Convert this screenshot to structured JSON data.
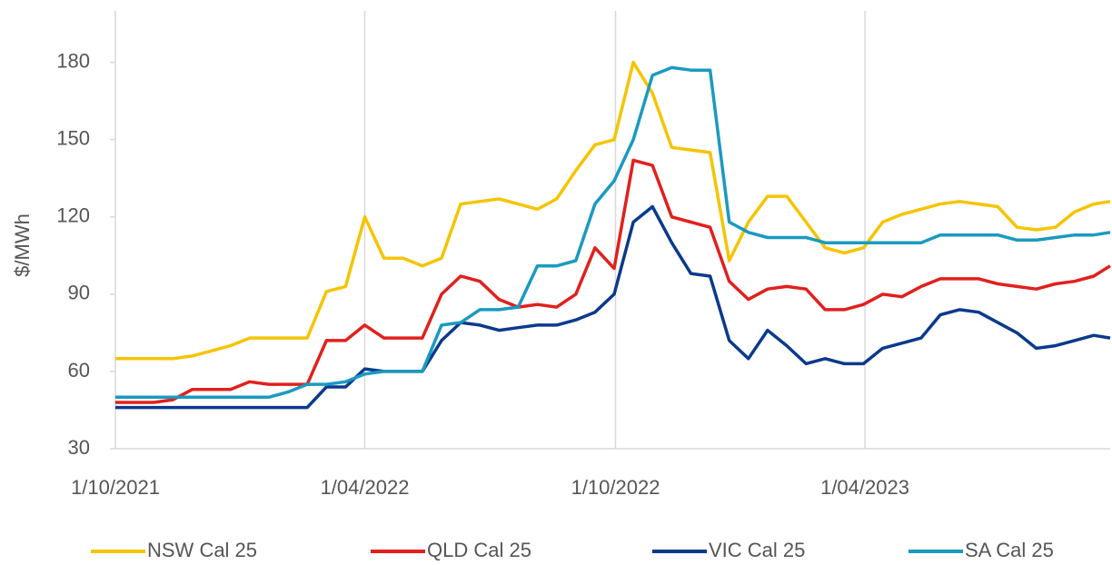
{
  "chart_data": {
    "type": "line",
    "y_label": "$/MWh",
    "x": [
      "2021-10-01",
      "2021-10-15",
      "2021-10-29",
      "2021-11-12",
      "2021-11-26",
      "2021-12-10",
      "2021-12-24",
      "2022-01-07",
      "2022-01-21",
      "2022-02-04",
      "2022-02-18",
      "2022-03-04",
      "2022-03-18",
      "2022-04-01",
      "2022-04-15",
      "2022-04-29",
      "2022-05-13",
      "2022-05-27",
      "2022-06-10",
      "2022-06-24",
      "2022-07-08",
      "2022-07-22",
      "2022-08-05",
      "2022-08-19",
      "2022-09-02",
      "2022-09-16",
      "2022-09-30",
      "2022-10-14",
      "2022-10-28",
      "2022-11-11",
      "2022-11-25",
      "2022-12-09",
      "2022-12-23",
      "2023-01-06",
      "2023-01-20",
      "2023-02-03",
      "2023-02-17",
      "2023-03-03",
      "2023-03-17",
      "2023-03-31",
      "2023-04-14",
      "2023-04-28",
      "2023-05-12",
      "2023-05-26",
      "2023-06-09",
      "2023-06-23",
      "2023-07-07",
      "2023-07-21",
      "2023-08-04",
      "2023-08-18",
      "2023-09-01",
      "2023-09-15",
      "2023-09-27"
    ],
    "series": [
      {
        "name": "NSW Cal 25",
        "color": "#f5c400",
        "values": [
          65,
          65,
          65,
          65,
          66,
          68,
          70,
          73,
          73,
          73,
          73,
          91,
          93,
          120,
          104,
          104,
          101,
          104,
          125,
          126,
          127,
          125,
          123,
          127,
          138,
          148,
          150,
          180,
          168,
          147,
          146,
          145,
          103,
          118,
          128,
          128,
          118,
          108,
          106,
          108,
          118,
          121,
          123,
          125,
          126,
          125,
          124,
          116,
          115,
          116,
          122,
          125,
          126
        ]
      },
      {
        "name": "QLD Cal 25",
        "color": "#e1201d",
        "values": [
          48,
          48,
          48,
          49,
          53,
          53,
          53,
          56,
          55,
          55,
          55,
          72,
          72,
          78,
          73,
          73,
          73,
          90,
          97,
          95,
          88,
          85,
          86,
          85,
          90,
          108,
          100,
          142,
          140,
          120,
          118,
          116,
          95,
          88,
          92,
          93,
          92,
          84,
          84,
          86,
          90,
          89,
          93,
          96,
          96,
          96,
          94,
          93,
          92,
          94,
          95,
          97,
          101
        ]
      },
      {
        "name": "VIC Cal 25",
        "color": "#0a3a8c",
        "values": [
          46,
          46,
          46,
          46,
          46,
          46,
          46,
          46,
          46,
          46,
          46,
          54,
          54,
          61,
          60,
          60,
          60,
          72,
          79,
          78,
          76,
          77,
          78,
          78,
          80,
          83,
          90,
          118,
          124,
          110,
          98,
          97,
          72,
          65,
          76,
          70,
          63,
          65,
          63,
          63,
          69,
          71,
          73,
          82,
          84,
          83,
          79,
          75,
          69,
          70,
          72,
          74,
          73
        ]
      },
      {
        "name": "SA Cal 25",
        "color": "#1a9ac0",
        "values": [
          50,
          50,
          50,
          50,
          50,
          50,
          50,
          50,
          50,
          52,
          55,
          55,
          56,
          59,
          60,
          60,
          60,
          78,
          79,
          84,
          84,
          85,
          101,
          101,
          103,
          125,
          134,
          150,
          175,
          178,
          177,
          177,
          118,
          114,
          112,
          112,
          112,
          110,
          110,
          110,
          110,
          110,
          110,
          113,
          113,
          113,
          113,
          111,
          111,
          112,
          113,
          113,
          114
        ]
      }
    ],
    "xlim": [
      "2021-10-01",
      "2023-09-27"
    ],
    "xticks": [
      {
        "value": "2021-10-01",
        "label": "1/10/2021"
      },
      {
        "value": "2022-04-01",
        "label": "1/04/2022"
      },
      {
        "value": "2022-10-01",
        "label": "1/10/2022"
      },
      {
        "value": "2023-04-01",
        "label": "1/04/2023"
      }
    ],
    "ylim": [
      30,
      200
    ],
    "yticks": [
      30,
      60,
      90,
      120,
      150,
      180
    ],
    "grid": "x",
    "legend": "bottom"
  }
}
